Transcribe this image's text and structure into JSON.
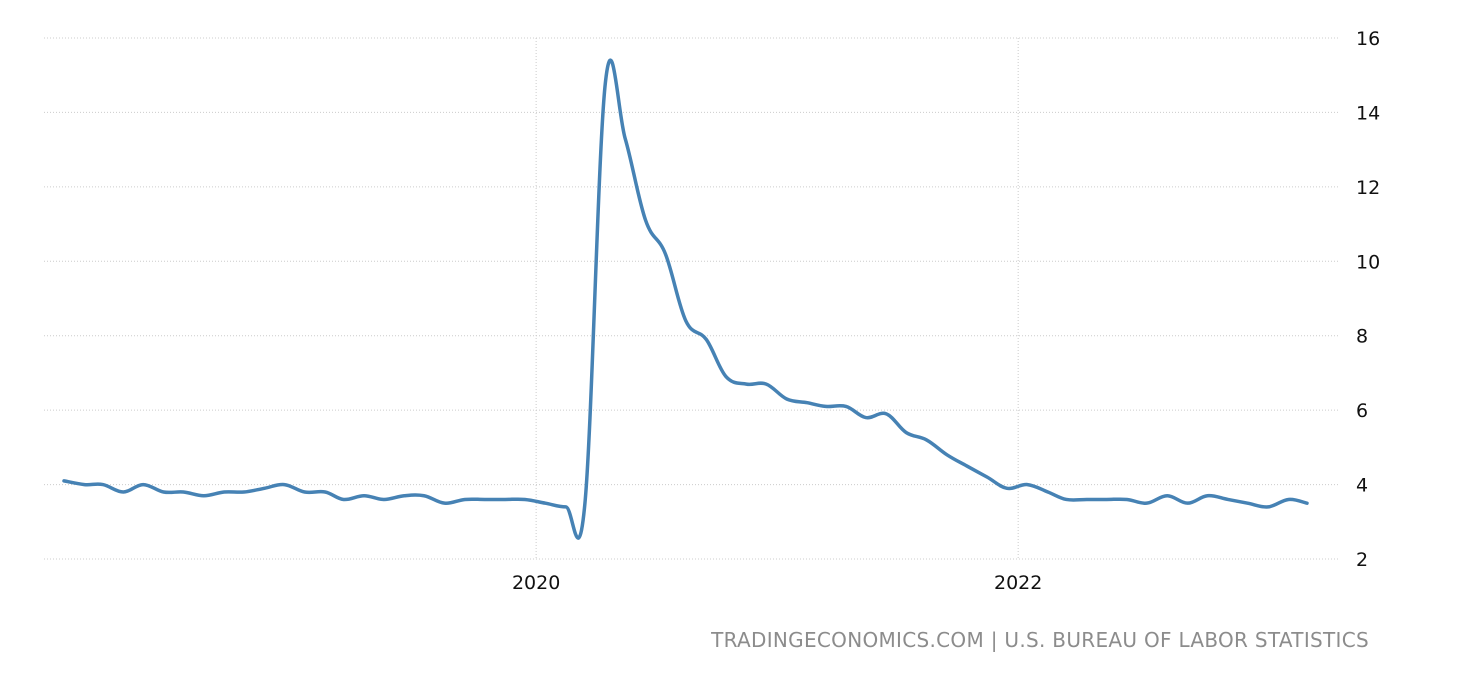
{
  "chart_data": {
    "type": "line",
    "title": "",
    "xlabel": "",
    "ylabel": "",
    "ylim": [
      2,
      16
    ],
    "y_ticks": [
      2,
      4,
      6,
      8,
      10,
      12,
      14,
      16
    ],
    "y_axis_position": "right",
    "x_ticks": [
      "2020-01",
      "2022-01"
    ],
    "x_tick_labels": [
      "2020",
      "2022"
    ],
    "grid": true,
    "legend": "none",
    "line_color": "#4682b4",
    "series": [
      {
        "x": [
          "2018-01",
          "2018-02",
          "2018-03",
          "2018-04",
          "2018-05",
          "2018-06",
          "2018-07",
          "2018-08",
          "2018-09",
          "2018-10",
          "2018-11",
          "2018-12",
          "2019-01",
          "2019-02",
          "2019-03",
          "2019-04",
          "2019-05",
          "2019-06",
          "2019-07",
          "2019-08",
          "2019-09",
          "2019-10",
          "2019-11",
          "2019-12",
          "2020-01",
          "2020-02",
          "2020-03",
          "2020-04",
          "2020-05",
          "2020-06",
          "2020-07",
          "2020-08",
          "2020-09",
          "2020-10",
          "2020-11",
          "2020-12",
          "2021-01",
          "2021-02",
          "2021-03",
          "2021-04",
          "2021-05",
          "2021-06",
          "2021-07",
          "2021-08",
          "2021-09",
          "2021-10",
          "2021-11",
          "2021-12",
          "2022-01",
          "2022-02",
          "2022-03",
          "2022-04",
          "2022-05",
          "2022-06",
          "2022-07",
          "2022-08",
          "2022-09",
          "2022-10",
          "2022-11",
          "2022-12",
          "2023-01",
          "2023-02",
          "2023-03"
        ],
        "values": [
          4.1,
          4.0,
          4.0,
          3.8,
          4.0,
          3.8,
          3.8,
          3.7,
          3.8,
          3.8,
          3.9,
          4.0,
          3.8,
          3.8,
          3.6,
          3.7,
          3.6,
          3.7,
          3.7,
          3.5,
          3.6,
          3.6,
          3.6,
          3.6,
          3.5,
          3.4,
          3.5,
          14.8,
          13.3,
          11.1,
          10.2,
          8.4,
          7.9,
          6.9,
          6.7,
          6.7,
          6.3,
          6.2,
          6.1,
          6.1,
          5.8,
          5.9,
          5.4,
          5.2,
          4.8,
          4.5,
          4.2,
          3.9,
          4.0,
          3.8,
          3.6,
          3.6,
          3.6,
          3.6,
          3.5,
          3.7,
          3.5,
          3.7,
          3.6,
          3.5,
          3.4,
          3.6,
          3.5
        ]
      }
    ]
  },
  "source_text": "TRADINGECONOMICS.COM | U.S. BUREAU OF LABOR STATISTICS"
}
